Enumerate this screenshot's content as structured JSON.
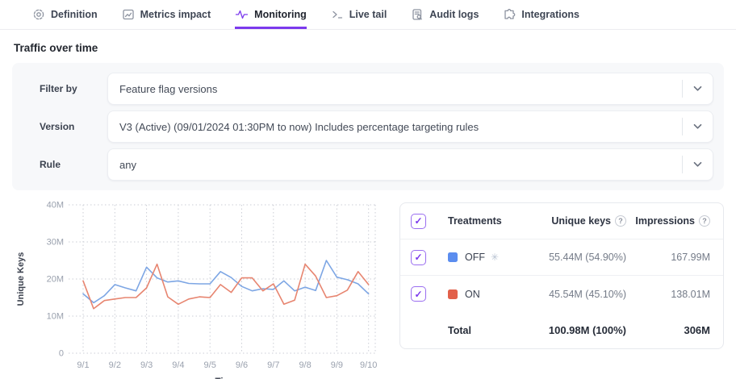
{
  "tabs": {
    "active_index": 2,
    "items": [
      {
        "label": "Definition",
        "icon": "definition-icon"
      },
      {
        "label": "Metrics impact",
        "icon": "metrics-impact-icon"
      },
      {
        "label": "Monitoring",
        "icon": "monitoring-pulse-icon"
      },
      {
        "label": "Live tail",
        "icon": "terminal-icon"
      },
      {
        "label": "Audit logs",
        "icon": "audit-logs-icon"
      },
      {
        "label": "Integrations",
        "icon": "puzzle-icon"
      }
    ]
  },
  "page": {
    "title": "Traffic over time"
  },
  "filters": {
    "rows": [
      {
        "label": "Filter by",
        "value": "Feature flag versions"
      },
      {
        "label": "Version",
        "value": "V3 (Active) (09/01/2024 01:30PM to now) Includes percentage targeting rules"
      },
      {
        "label": "Rule",
        "value": "any"
      }
    ]
  },
  "chart_data": {
    "type": "line",
    "xlabel": "Time",
    "ylabel": "Unique Keys",
    "x_ticks": [
      "9/1",
      "9/2",
      "9/3",
      "9/4",
      "9/5",
      "9/6",
      "9/7",
      "9/8",
      "9/9",
      "9/10"
    ],
    "y_ticks": [
      "0",
      "10M",
      "20M",
      "30M",
      "40M"
    ],
    "ylim": [
      0,
      40
    ],
    "grid": "dotted",
    "x": [
      1,
      1.33,
      1.67,
      2,
      2.33,
      2.67,
      3,
      3.33,
      3.67,
      4,
      4.33,
      4.67,
      5,
      5.33,
      5.67,
      6,
      6.33,
      6.67,
      7,
      7.33,
      7.67,
      8,
      8.33,
      8.67,
      9,
      9.33,
      9.67,
      10
    ],
    "series": [
      {
        "name": "OFF",
        "color": "#7da6e4",
        "values": [
          16,
          13.6,
          15.5,
          18.5,
          17.6,
          16.8,
          23.2,
          20.3,
          19.2,
          19.5,
          18.8,
          18.7,
          18.7,
          22,
          20.4,
          18,
          16.8,
          17.4,
          17.2,
          19.5,
          16.8,
          17.8,
          16.9,
          25,
          20.5,
          19.8,
          18.7,
          16
        ]
      },
      {
        "name": "ON",
        "color": "#e78570",
        "values": [
          19.5,
          12,
          14.2,
          14.6,
          15,
          15,
          17.6,
          24,
          15.2,
          13.2,
          14.6,
          15.2,
          15,
          18.5,
          16.4,
          20.3,
          20.3,
          16.8,
          18.7,
          13.2,
          14.3,
          24,
          20.8,
          15,
          15.5,
          17,
          22,
          18.5
        ]
      }
    ]
  },
  "treatments_table": {
    "headers": {
      "treatments": "Treatments",
      "unique_keys": "Unique keys",
      "impressions": "Impressions"
    },
    "rows": [
      {
        "name": "OFF",
        "color": "#5b8def",
        "default_marker": "✳",
        "checked": true,
        "unique_keys": "55.44M (54.90%)",
        "impressions": "167.99M"
      },
      {
        "name": "ON",
        "color": "#e2604a",
        "default_marker": "",
        "checked": true,
        "unique_keys": "45.54M (45.10%)",
        "impressions": "138.01M"
      }
    ],
    "total": {
      "label": "Total",
      "unique_keys": "100.98M (100%)",
      "impressions": "306M"
    },
    "header_checked": true
  },
  "colors": {
    "accent": "#7c3aed",
    "line_off": "#7da6e4",
    "line_on": "#e78570"
  }
}
